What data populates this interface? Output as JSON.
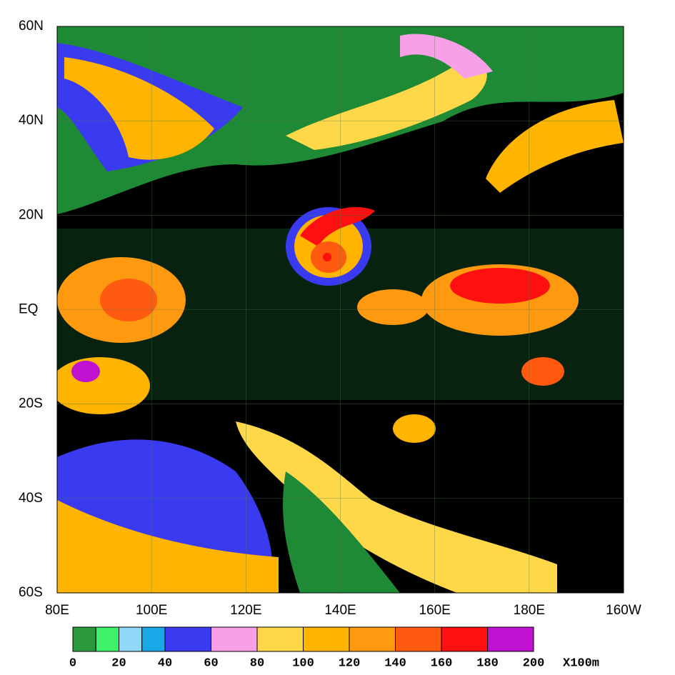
{
  "map": {
    "latlim": [
      -60,
      60
    ],
    "lat_ticks": [
      {
        "value": 60,
        "label": "60N"
      },
      {
        "value": 40,
        "label": "40N"
      },
      {
        "value": 20,
        "label": "20N"
      },
      {
        "value": 0,
        "label": "EQ"
      },
      {
        "value": -20,
        "label": "20S"
      },
      {
        "value": -40,
        "label": "40S"
      },
      {
        "value": -60,
        "label": "60S"
      }
    ],
    "lonlim": [
      80,
      200
    ],
    "lon_ticks": [
      {
        "value": 80,
        "label": "80E"
      },
      {
        "value": 100,
        "label": "100E"
      },
      {
        "value": 120,
        "label": "120E"
      },
      {
        "value": 140,
        "label": "140E"
      },
      {
        "value": 160,
        "label": "160E"
      },
      {
        "value": 180,
        "label": "180E"
      },
      {
        "value": 200,
        "label": "160W"
      }
    ]
  },
  "colorbar": {
    "bounds": [
      0,
      10,
      20,
      30,
      40,
      60,
      80,
      100,
      120,
      140,
      160,
      180,
      200
    ],
    "colors": [
      "#2a9a3a",
      "#3df26a",
      "#8fd8f8",
      "#19a8e8",
      "#3a3af0",
      "#f7a0e8",
      "#ffd84a",
      "#ffb400",
      "#ff9a10",
      "#ff5a10",
      "#ff1010",
      "#c010d0"
    ],
    "ticks": [
      0,
      20,
      40,
      60,
      80,
      100,
      120,
      140,
      160,
      180,
      200
    ],
    "unit": "X100m"
  }
}
